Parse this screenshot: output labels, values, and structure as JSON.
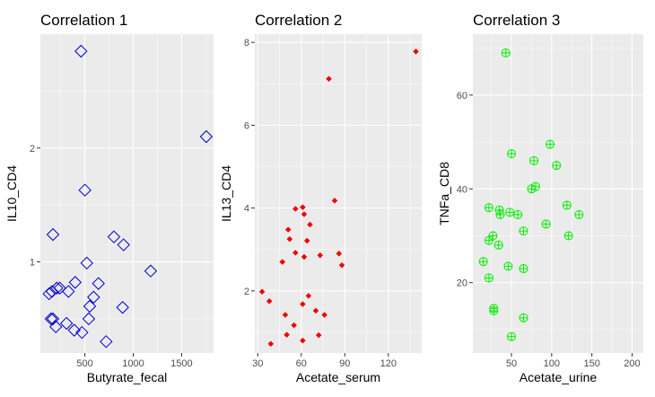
{
  "chart_data": [
    {
      "type": "scatter",
      "title": "Correlation 1",
      "xlabel": "Butyrate_fecal",
      "ylabel": "IL10_CD4",
      "xlim": [
        40,
        1830
      ],
      "ylim": [
        0.2,
        3.0
      ],
      "xticks": [
        500,
        1000,
        1500
      ],
      "yticks": [
        1,
        2
      ],
      "marker": "diamond-open",
      "color": "#0000cc",
      "points": [
        [
          460,
          2.85
        ],
        [
          1755,
          2.1
        ],
        [
          500,
          1.63
        ],
        [
          170,
          1.24
        ],
        [
          800,
          1.22
        ],
        [
          900,
          1.15
        ],
        [
          520,
          0.99
        ],
        [
          1180,
          0.92
        ],
        [
          400,
          0.82
        ],
        [
          640,
          0.81
        ],
        [
          210,
          0.77
        ],
        [
          240,
          0.77
        ],
        [
          160,
          0.74
        ],
        [
          130,
          0.72
        ],
        [
          330,
          0.74
        ],
        [
          590,
          0.69
        ],
        [
          550,
          0.61
        ],
        [
          890,
          0.6
        ],
        [
          150,
          0.5
        ],
        [
          170,
          0.5
        ],
        [
          540,
          0.5
        ],
        [
          310,
          0.46
        ],
        [
          200,
          0.43
        ],
        [
          390,
          0.4
        ],
        [
          470,
          0.38
        ],
        [
          720,
          0.3
        ]
      ]
    },
    {
      "type": "scatter",
      "title": "Correlation 2",
      "xlabel": "Acetate_serum",
      "ylabel": "IL13_CD4",
      "xlim": [
        28,
        143
      ],
      "ylim": [
        0.5,
        8.2
      ],
      "xticks": [
        30,
        60,
        90,
        120
      ],
      "yticks": [
        2,
        4,
        6,
        8
      ],
      "marker": "diamond-filled",
      "color": "#ee0000",
      "points": [
        [
          139,
          7.78
        ],
        [
          79,
          7.12
        ],
        [
          83,
          4.18
        ],
        [
          61,
          4.02
        ],
        [
          56,
          3.98
        ],
        [
          62,
          3.85
        ],
        [
          66,
          3.6
        ],
        [
          51,
          3.48
        ],
        [
          52,
          3.25
        ],
        [
          64,
          3.21
        ],
        [
          56,
          2.92
        ],
        [
          73,
          2.86
        ],
        [
          86,
          2.9
        ],
        [
          62,
          2.82
        ],
        [
          47,
          2.7
        ],
        [
          88,
          2.62
        ],
        [
          33,
          1.98
        ],
        [
          65,
          1.88
        ],
        [
          61,
          1.68
        ],
        [
          38,
          1.75
        ],
        [
          70,
          1.52
        ],
        [
          49,
          1.42
        ],
        [
          76,
          1.42
        ],
        [
          55,
          1.17
        ],
        [
          50,
          0.94
        ],
        [
          72,
          0.93
        ],
        [
          61,
          0.8
        ],
        [
          39,
          0.72
        ]
      ]
    },
    {
      "type": "scatter",
      "title": "Correlation 3",
      "xlabel": "Acetate_urine",
      "ylabel": "TNFa_CD8",
      "xlim": [
        2,
        214
      ],
      "ylim": [
        5,
        73
      ],
      "xticks": [
        50,
        100,
        150,
        200
      ],
      "yticks": [
        20,
        40,
        60
      ],
      "marker": "crossed-circle",
      "color": "#00ee00",
      "points": [
        [
          43,
          69
        ],
        [
          50,
          47.5
        ],
        [
          98,
          49.5
        ],
        [
          78,
          46
        ],
        [
          106,
          45
        ],
        [
          80,
          40.5
        ],
        [
          75,
          40
        ],
        [
          22,
          36
        ],
        [
          35,
          35.5
        ],
        [
          48,
          35
        ],
        [
          36,
          34.5
        ],
        [
          58,
          34.5
        ],
        [
          119,
          36.5
        ],
        [
          134,
          34.5
        ],
        [
          93,
          32.5
        ],
        [
          65,
          31
        ],
        [
          27,
          30
        ],
        [
          22,
          29
        ],
        [
          34,
          28
        ],
        [
          121,
          30
        ],
        [
          15,
          24.5
        ],
        [
          46,
          23.5
        ],
        [
          65,
          23
        ],
        [
          22,
          21
        ],
        [
          28,
          14.5
        ],
        [
          28,
          14
        ],
        [
          65,
          12.5
        ],
        [
          50,
          8.5
        ]
      ]
    }
  ]
}
